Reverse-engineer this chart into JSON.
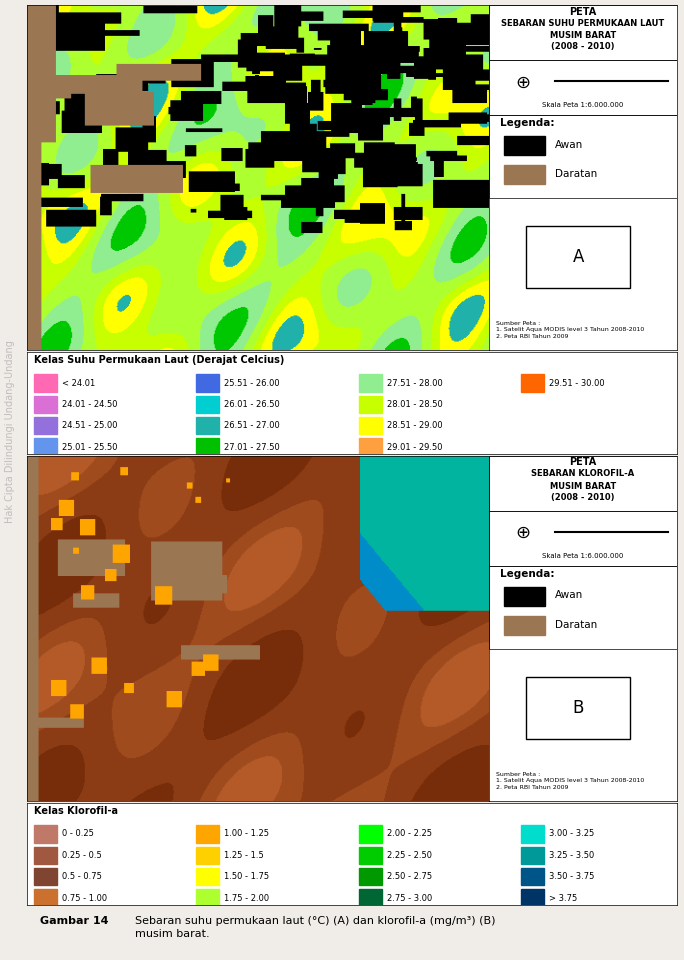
{
  "fig_width": 6.84,
  "fig_height": 9.6,
  "bg_color": "#f0ede8",
  "watermark_text": "Hak Cipta Dilindungi Undang-Undang",
  "watermark_color": "#888888",
  "panel_A": {
    "title_lines": [
      "PETA",
      "SEBARAN SUHU PERMUKAAN LAUT",
      "MUSIM BARAT",
      "(2008 - 2010)"
    ],
    "scale_label": "Skala Peta 1:6.000.000",
    "legend_items": [
      {
        "label": "Awan",
        "color": "#000000"
      },
      {
        "label": "Daratan",
        "color": "#9B7653"
      }
    ],
    "panel_label": "A",
    "source_text": "Sumber Peta :\n1. Satelit Aqua MODIS level 3 Tahun 2008-2010\n2. Peta RBI Tahun 2009"
  },
  "panel_B": {
    "title_lines": [
      "PETA",
      "SEBARAN KLOROFIL-A",
      "MUSIM BARAT",
      "(2008 - 2010)"
    ],
    "scale_label": "Skala Peta 1:6.000.000",
    "legend_items": [
      {
        "label": "Awan",
        "color": "#000000"
      },
      {
        "label": "Daratan",
        "color": "#9B7653"
      }
    ],
    "panel_label": "B",
    "source_text": "Sumber Peta :\n1. Satelit Aqua MODIS level 3 Tahun 2008-2010\n2. Peta RBI Tahun 2009"
  },
  "sst_legend": {
    "title": "Kelas Suhu Permukaan Laut (Derajat Celcius)",
    "cols": [
      [
        {
          "label": "< 24.01",
          "color": "#FF69B4"
        },
        {
          "label": "24.01 - 24.50",
          "color": "#DA70D6"
        },
        {
          "label": "24.51 - 25.00",
          "color": "#9370DB"
        },
        {
          "label": "25.01 - 25.50",
          "color": "#6495ED"
        }
      ],
      [
        {
          "label": "25.51 - 26.00",
          "color": "#4169E1"
        },
        {
          "label": "26.01 - 26.50",
          "color": "#00CED1"
        },
        {
          "label": "26.51 - 27.00",
          "color": "#20B2AA"
        },
        {
          "label": "27.01 - 27.50",
          "color": "#00C000"
        }
      ],
      [
        {
          "label": "27.51 - 28.00",
          "color": "#90EE90"
        },
        {
          "label": "28.01 - 28.50",
          "color": "#C8FF00"
        },
        {
          "label": "28.51 - 29.00",
          "color": "#FFFF00"
        },
        {
          "label": "29.01 - 29.50",
          "color": "#FFA040"
        }
      ],
      [
        {
          "label": "29.51 - 30.00",
          "color": "#FF6600"
        }
      ]
    ]
  },
  "chl_legend": {
    "title": "Kelas Klorofil-a",
    "cols": [
      [
        {
          "label": "0 - 0.25",
          "color": "#C07868"
        },
        {
          "label": "0.25 - 0.5",
          "color": "#A05840"
        },
        {
          "label": "0.5 - 0.75",
          "color": "#804530"
        },
        {
          "label": "0.75 - 1.00",
          "color": "#CC7030"
        }
      ],
      [
        {
          "label": "1.00 - 1.25",
          "color": "#FFA500"
        },
        {
          "label": "1.25 - 1.5",
          "color": "#FFD000"
        },
        {
          "label": "1.50 - 1.75",
          "color": "#FFFF00"
        },
        {
          "label": "1.75 - 2.00",
          "color": "#ADFF2F"
        }
      ],
      [
        {
          "label": "2.00 - 2.25",
          "color": "#00FF00"
        },
        {
          "label": "2.25 - 2.50",
          "color": "#00CC00"
        },
        {
          "label": "2.50 - 2.75",
          "color": "#009900"
        },
        {
          "label": "2.75 - 3.00",
          "color": "#006633"
        }
      ],
      [
        {
          "label": "3.00 - 3.25",
          "color": "#00DDCC"
        },
        {
          "label": "3.25 - 3.50",
          "color": "#009999"
        },
        {
          "label": "3.50 - 3.75",
          "color": "#005588"
        },
        {
          "label": "> 3.75",
          "color": "#003366"
        }
      ]
    ]
  },
  "caption_label": "Gambar 14",
  "caption_text": "Sebaran suhu permukaan laut (°C) (A) dan klorofil-a (mg/m³) (B)\nmusim barat."
}
